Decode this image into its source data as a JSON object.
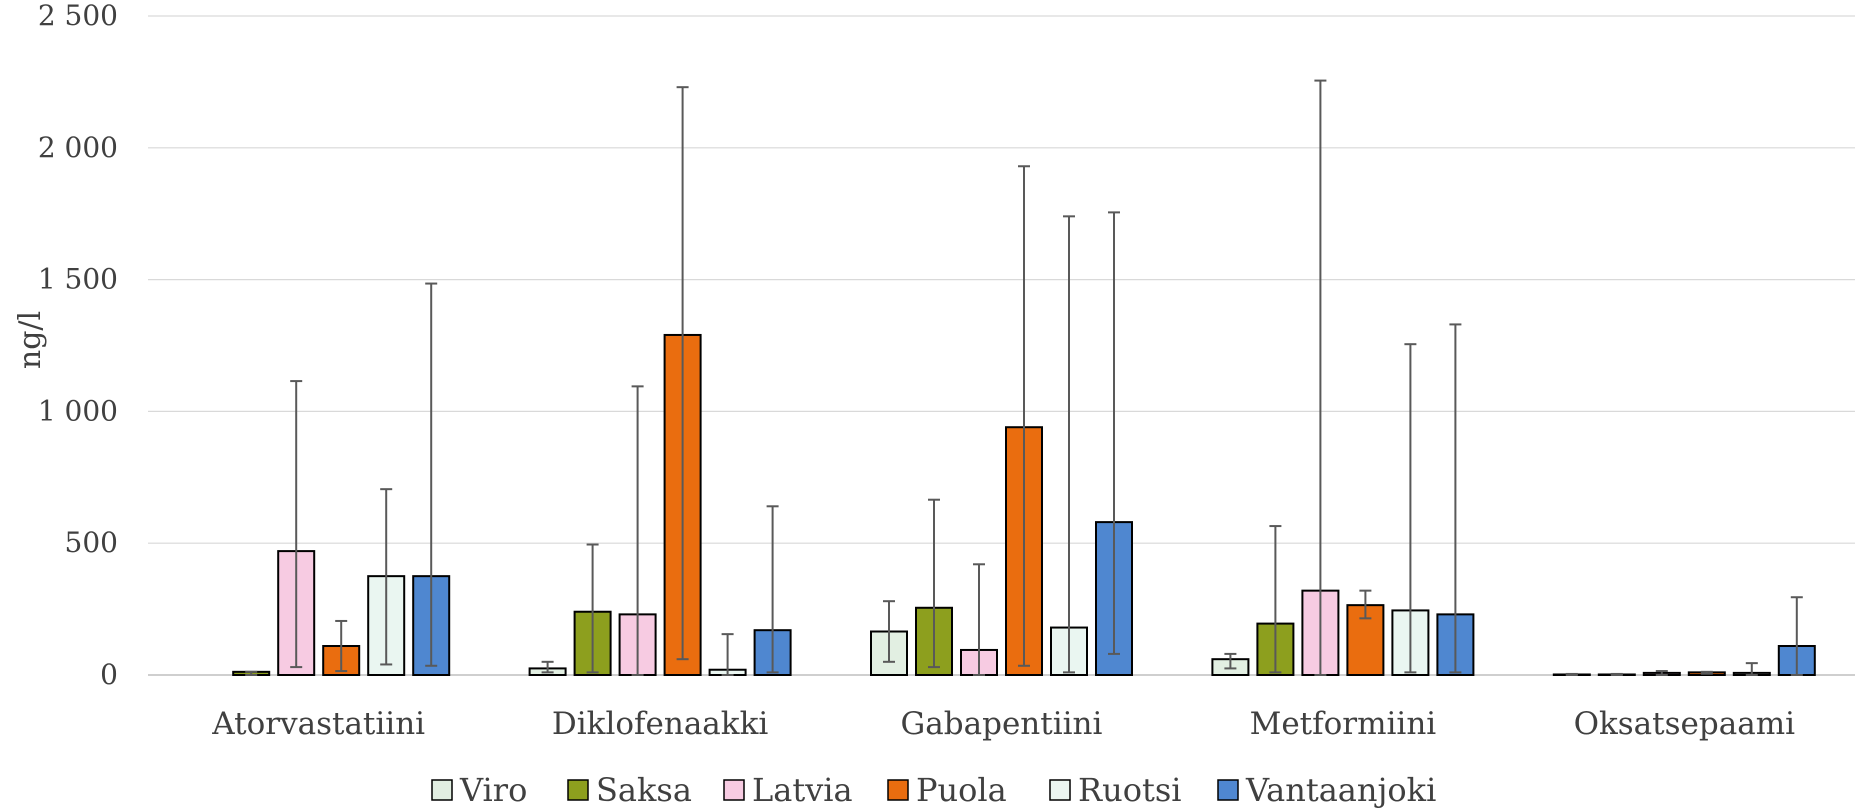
{
  "chart_data": {
    "type": "bar",
    "title": "",
    "xlabel": "",
    "ylabel": "ng/l",
    "ylim": [
      0,
      2500
    ],
    "yticks": [
      0,
      500,
      1000,
      1500,
      2000,
      2500
    ],
    "ytick_labels": [
      "0",
      "500",
      "1 000",
      "1 500",
      "2 000",
      "2 500"
    ],
    "grid": true,
    "legend_position": "bottom",
    "categories": [
      "Atorvastatiini",
      "Diklofenaakki",
      "Gabapentiini",
      "Metformiini",
      "Oksatsepaami"
    ],
    "series": [
      {
        "name": "Viro",
        "color": "#e2efe2",
        "values": [
          0,
          25,
          165,
          60,
          2
        ],
        "err_low": [
          null,
          10,
          50,
          25,
          0
        ],
        "err_high": [
          null,
          50,
          280,
          80,
          4
        ]
      },
      {
        "name": "Saksa",
        "color": "#8d9f1e",
        "values": [
          12,
          240,
          255,
          195,
          2
        ],
        "err_low": [
          0,
          10,
          30,
          10,
          0
        ],
        "err_high": [
          12,
          495,
          665,
          565,
          4
        ]
      },
      {
        "name": "Latvia",
        "color": "#f7cbe2",
        "values": [
          470,
          230,
          95,
          320,
          8
        ],
        "err_low": [
          30,
          0,
          0,
          0,
          0
        ],
        "err_high": [
          1115,
          1095,
          420,
          2255,
          15
        ]
      },
      {
        "name": "Puola",
        "color": "#ea6d0f",
        "values": [
          110,
          1290,
          940,
          265,
          10
        ],
        "err_low": [
          15,
          60,
          35,
          215,
          5
        ],
        "err_high": [
          205,
          2230,
          1930,
          320,
          12
        ]
      },
      {
        "name": "Ruotsi",
        "color": "#eaf6f1",
        "values": [
          375,
          20,
          180,
          245,
          8
        ],
        "err_low": [
          40,
          0,
          10,
          10,
          0
        ],
        "err_high": [
          705,
          155,
          1740,
          1255,
          45
        ]
      },
      {
        "name": "Vantaanjoki",
        "color": "#4f87d0",
        "values": [
          375,
          170,
          580,
          230,
          110
        ],
        "err_low": [
          35,
          10,
          80,
          10,
          0
        ],
        "err_high": [
          1485,
          640,
          1755,
          1330,
          295
        ]
      }
    ]
  }
}
